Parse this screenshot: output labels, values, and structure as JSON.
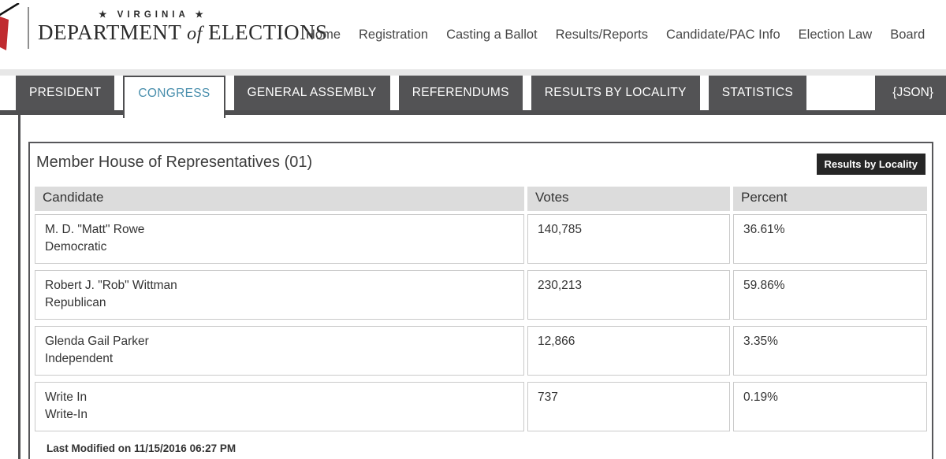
{
  "brand": {
    "virginia_line": "★ VIRGINIA ★",
    "dept_pre": "DEPARTMENT",
    "dept_of": "of",
    "dept_post": "ELECTIONS"
  },
  "nav": {
    "items": [
      "Home",
      "Registration",
      "Casting a Ballot",
      "Results/Reports",
      "Candidate/PAC Info",
      "Election Law",
      "Board"
    ]
  },
  "tabs": {
    "items": [
      {
        "label": "PRESIDENT",
        "active": false
      },
      {
        "label": "CONGRESS",
        "active": true
      },
      {
        "label": "GENERAL ASSEMBLY",
        "active": false
      },
      {
        "label": "REFERENDUMS",
        "active": false
      },
      {
        "label": "RESULTS BY LOCALITY",
        "active": false
      },
      {
        "label": "STATISTICS",
        "active": false
      }
    ],
    "json_link": "{JSON}"
  },
  "results": {
    "title": "Member House of Representatives (01)",
    "locality_button": "Results by Locality",
    "table": {
      "headers": [
        "Candidate",
        "Votes",
        "Percent"
      ],
      "rows": [
        {
          "name": "M. D. \"Matt\" Rowe",
          "party": "Democratic",
          "votes": "140,785",
          "percent": "36.61%"
        },
        {
          "name": "Robert J. \"Rob\" Wittman",
          "party": "Republican",
          "votes": "230,213",
          "percent": "59.86%"
        },
        {
          "name": "Glenda Gail Parker",
          "party": "Independent",
          "votes": "12,866",
          "percent": "3.35%"
        },
        {
          "name": "Write In",
          "party": "Write-In",
          "votes": "737",
          "percent": "0.19%"
        }
      ]
    },
    "last_modified": "Last Modified on 11/15/2016 06:27 PM"
  },
  "colors": {
    "tab_gray": "#535355",
    "tab_border_dark": "#4f4f51",
    "active_tab_text": "#4a8fad",
    "button_black": "#262626",
    "logo_red": "#c02b30",
    "header_cell_bg": "#dcdcdc",
    "cell_border": "#c9c9c9"
  }
}
